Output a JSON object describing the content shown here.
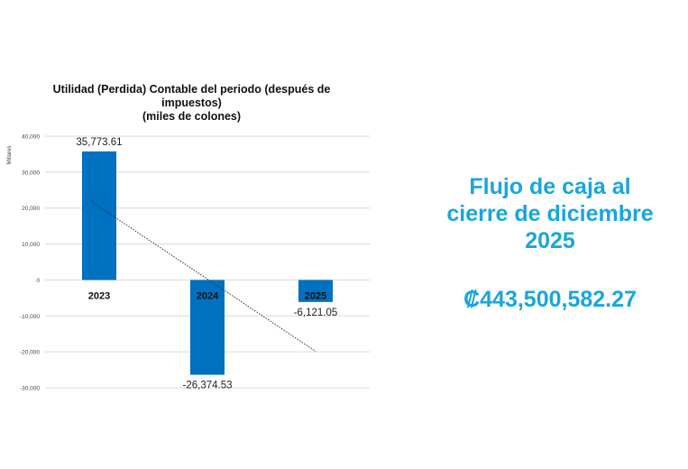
{
  "chart_data": {
    "type": "bar",
    "title_lines": [
      "Utilidad (Perdida) Contable del periodo (después de",
      "impuestos)",
      "(miles de colones)"
    ],
    "ylabel": "Millares",
    "xlabel": "",
    "categories": [
      "2023",
      "2024",
      "2025"
    ],
    "series": [
      {
        "values": [
          35773.61,
          -26374.53,
          -6121.05
        ]
      }
    ],
    "data_labels": [
      "35,773.61",
      "-26,374.53",
      "-6,121.05"
    ],
    "ylim": [
      -30000,
      40000
    ],
    "yticks": [
      40000,
      30000,
      20000,
      10000,
      0,
      -10000,
      -20000,
      -30000
    ],
    "ytick_labels": [
      "40,000",
      "30,000",
      "20,000",
      "10,000",
      "0",
      "-10,000",
      "-20,000",
      "-30,000"
    ],
    "trendline": {
      "type": "linear",
      "style": "dotted"
    },
    "grid": true,
    "legend": "none",
    "bar_color": "#0070c0"
  },
  "cash_flow": {
    "heading_lines": [
      "Flujo de caja al",
      "cierre de diciembre",
      "2025"
    ],
    "amount": "₡443,500,582.27",
    "color": "#19a6dc"
  }
}
